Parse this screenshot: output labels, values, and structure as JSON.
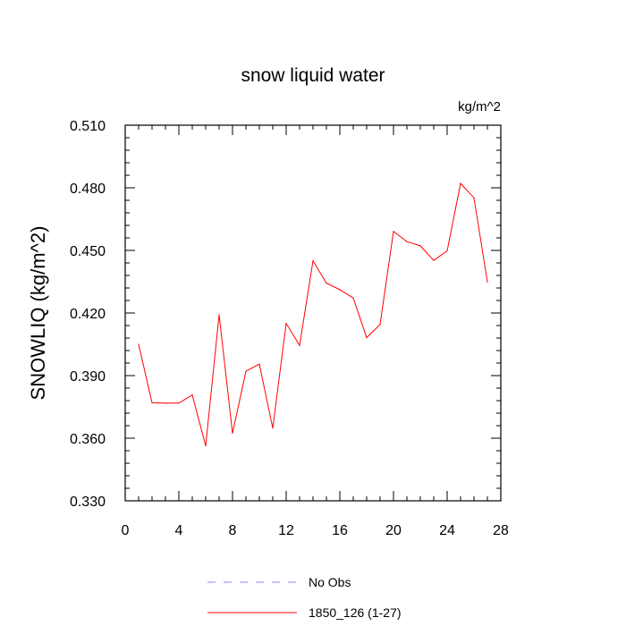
{
  "chart_data": {
    "type": "line",
    "title": "snow liquid water",
    "units": "kg/m^2",
    "xlabel": "",
    "ylabel": "SNOWLIQ  (kg/m^2)",
    "xlim": [
      0,
      28
    ],
    "ylim": [
      0.33,
      0.51
    ],
    "x_ticks": [
      0,
      4,
      8,
      12,
      16,
      20,
      24,
      28
    ],
    "x_tick_labels": [
      "0",
      "4",
      "8",
      "12",
      "16",
      "20",
      "24",
      "28"
    ],
    "y_ticks": [
      0.33,
      0.36,
      0.39,
      0.42,
      0.45,
      0.48,
      0.51
    ],
    "y_tick_labels": [
      "0.330",
      "0.360",
      "0.390",
      "0.420",
      "0.450",
      "0.480",
      "0.510"
    ],
    "grid": false,
    "legend_position": "bottom",
    "series": [
      {
        "name": "No Obs",
        "color": "#8a8aff",
        "dash": "dashed",
        "x": [],
        "values": []
      },
      {
        "name": "1850_126 (1-27)",
        "color": "#ff0000",
        "dash": "solid",
        "x": [
          1,
          2,
          3,
          4,
          5,
          6,
          7,
          8,
          9,
          10,
          11,
          12,
          13,
          14,
          15,
          16,
          17,
          18,
          19,
          20,
          21,
          22,
          23,
          24,
          25,
          26,
          27
        ],
        "values": [
          0.405,
          0.377,
          0.3768,
          0.3768,
          0.3807,
          0.3563,
          0.4192,
          0.3624,
          0.3921,
          0.3955,
          0.3648,
          0.415,
          0.4045,
          0.445,
          0.4343,
          0.4312,
          0.4272,
          0.4082,
          0.4145,
          0.4591,
          0.4542,
          0.4522,
          0.4452,
          0.4498,
          0.4821,
          0.4752,
          0.4349
        ]
      }
    ]
  }
}
